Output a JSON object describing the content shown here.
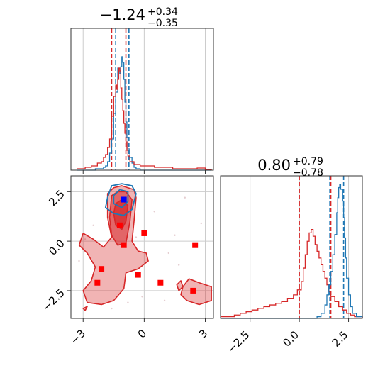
{
  "chart_data": {
    "type": "corner",
    "colors": {
      "blue": "#1f77b4",
      "red": "#d62728"
    },
    "panels": [
      {
        "id": "param1-hist",
        "type": "histogram",
        "title": {
          "value": "−1.24",
          "plus": "+0.34",
          "minus": "−0.35"
        },
        "xlim": [
          -3.6,
          3.4
        ],
        "grid": true,
        "quantiles_red": [
          -1.6,
          -0.9
        ],
        "quantiles_blue": [
          -1.4,
          -0.75
        ],
        "blue_bins": [
          [
            -3.3,
            0
          ],
          [
            -2.4,
            0.01
          ],
          [
            -2.0,
            0.02
          ],
          [
            -1.9,
            0.03
          ],
          [
            -1.8,
            0.06
          ],
          [
            -1.7,
            0.12
          ],
          [
            -1.6,
            0.22
          ],
          [
            -1.5,
            0.4
          ],
          [
            -1.4,
            0.55
          ],
          [
            -1.3,
            0.72
          ],
          [
            -1.2,
            0.68
          ],
          [
            -1.15,
            0.73
          ],
          [
            -1.1,
            0.8
          ],
          [
            -1.05,
            0.76
          ],
          [
            -1.0,
            0.64
          ],
          [
            -0.95,
            0.48
          ],
          [
            -0.9,
            0.34
          ],
          [
            -0.85,
            0.23
          ],
          [
            -0.8,
            0.15
          ],
          [
            -0.7,
            0.09
          ],
          [
            -0.6,
            0.05
          ],
          [
            -0.5,
            0.02
          ],
          [
            -0.4,
            0.01
          ],
          [
            -0.2,
            0
          ],
          [
            3.3,
            0
          ]
        ],
        "red_bins": [
          [
            -3.3,
            0.01
          ],
          [
            -2.9,
            0.02
          ],
          [
            -2.6,
            0.03
          ],
          [
            -2.3,
            0.05
          ],
          [
            -2.1,
            0.06
          ],
          [
            -2.0,
            0.09
          ],
          [
            -1.9,
            0.11
          ],
          [
            -1.8,
            0.16
          ],
          [
            -1.7,
            0.22
          ],
          [
            -1.6,
            0.38
          ],
          [
            -1.5,
            0.52
          ],
          [
            -1.4,
            0.6
          ],
          [
            -1.35,
            0.57
          ],
          [
            -1.3,
            0.64
          ],
          [
            -1.25,
            0.72
          ],
          [
            -1.2,
            0.7
          ],
          [
            -1.15,
            0.58
          ],
          [
            -1.1,
            0.5
          ],
          [
            -1.05,
            0.42
          ],
          [
            -1.0,
            0.33
          ],
          [
            -0.95,
            0.26
          ],
          [
            -0.9,
            0.2
          ],
          [
            -0.85,
            0.14
          ],
          [
            -0.8,
            0.1
          ],
          [
            -0.7,
            0.06
          ],
          [
            -0.5,
            0.04
          ],
          [
            -0.2,
            0.03
          ],
          [
            0.5,
            0.02
          ],
          [
            1.4,
            0.01
          ],
          [
            2.6,
            0.015
          ],
          [
            3.0,
            0.005
          ],
          [
            3.3,
            0
          ]
        ]
      },
      {
        "id": "param2-hist",
        "type": "histogram",
        "title": {
          "value": "0.80",
          "plus": "+0.79",
          "minus": "−0.78"
        },
        "xlim": [
          -4.0,
          3.2
        ],
        "xticks": [
          "−2.5",
          "0.0",
          "2.5"
        ],
        "xtick_values": [
          -2.5,
          0.0,
          2.5
        ],
        "grid": true,
        "quantiles_red": [
          0.0,
          1.6
        ],
        "quantiles_blue": [
          1.55,
          2.25
        ],
        "blue_bins": [
          [
            -4.0,
            0
          ],
          [
            0.9,
            0.01
          ],
          [
            1.1,
            0.03
          ],
          [
            1.3,
            0.08
          ],
          [
            1.4,
            0.14
          ],
          [
            1.5,
            0.2
          ],
          [
            1.6,
            0.28
          ],
          [
            1.7,
            0.38
          ],
          [
            1.8,
            0.5
          ],
          [
            1.9,
            0.63
          ],
          [
            1.95,
            0.72
          ],
          [
            2.0,
            0.78
          ],
          [
            2.05,
            0.8
          ],
          [
            2.1,
            0.77
          ],
          [
            2.2,
            0.7
          ],
          [
            2.25,
            0.6
          ],
          [
            2.3,
            0.48
          ],
          [
            2.35,
            0.36
          ],
          [
            2.4,
            0.24
          ],
          [
            2.5,
            0.14
          ],
          [
            2.6,
            0.07
          ],
          [
            2.7,
            0.03
          ],
          [
            2.9,
            0.01
          ],
          [
            3.2,
            0
          ]
        ],
        "red_bins": [
          [
            -4.0,
            0.01
          ],
          [
            -3.3,
            0.02
          ],
          [
            -3.0,
            0.03
          ],
          [
            -2.7,
            0.04
          ],
          [
            -2.4,
            0.05
          ],
          [
            -2.1,
            0.06
          ],
          [
            -1.8,
            0.07
          ],
          [
            -1.5,
            0.08
          ],
          [
            -1.2,
            0.09
          ],
          [
            -0.9,
            0.1
          ],
          [
            -0.6,
            0.12
          ],
          [
            -0.3,
            0.14
          ],
          [
            -0.1,
            0.17
          ],
          [
            0.1,
            0.22
          ],
          [
            0.2,
            0.3
          ],
          [
            0.3,
            0.38
          ],
          [
            0.4,
            0.46
          ],
          [
            0.5,
            0.51
          ],
          [
            0.6,
            0.53
          ],
          [
            0.7,
            0.49
          ],
          [
            0.8,
            0.44
          ],
          [
            0.9,
            0.4
          ],
          [
            1.0,
            0.36
          ],
          [
            1.1,
            0.32
          ],
          [
            1.2,
            0.28
          ],
          [
            1.3,
            0.24
          ],
          [
            1.4,
            0.2
          ],
          [
            1.5,
            0.16
          ],
          [
            1.6,
            0.13
          ],
          [
            1.8,
            0.1
          ],
          [
            2.0,
            0.07
          ],
          [
            2.2,
            0.05
          ],
          [
            2.4,
            0.03
          ],
          [
            2.6,
            0.02
          ],
          [
            2.8,
            0.01
          ],
          [
            3.2,
            0
          ]
        ]
      },
      {
        "id": "joint-2d",
        "type": "contour-2d",
        "xlim": [
          -3.6,
          3.4
        ],
        "ylim": [
          -3.9,
          3.3
        ],
        "xticks": [
          "−3",
          "0",
          "3"
        ],
        "xtick_values": [
          -3,
          0,
          3
        ],
        "yticks": [
          "2.5",
          "0.0",
          "−2.5"
        ],
        "ytick_values": [
          2.5,
          0.0,
          -2.5
        ],
        "grid": true,
        "red_contours": [
          {
            "level": "outer",
            "points": [
              [
                -1.8,
                2.4
              ],
              [
                -1.5,
                2.7
              ],
              [
                -1.1,
                2.8
              ],
              [
                -0.5,
                2.6
              ],
              [
                -0.4,
                2.2
              ],
              [
                -0.5,
                1.0
              ],
              [
                -0.6,
                0.0
              ],
              [
                -0.3,
                -0.5
              ],
              [
                0.1,
                -0.6
              ],
              [
                0.2,
                -1.0
              ],
              [
                -0.3,
                -1.4
              ],
              [
                -0.9,
                -1.6
              ],
              [
                -1.0,
                -2.4
              ],
              [
                -1.5,
                -3.0
              ],
              [
                -2.1,
                -3.2
              ],
              [
                -2.8,
                -3.1
              ],
              [
                -3.0,
                -2.5
              ],
              [
                -2.6,
                -2.0
              ],
              [
                -2.4,
                -1.3
              ],
              [
                -2.8,
                -0.6
              ],
              [
                -3.2,
                -0.2
              ],
              [
                -3.0,
                0.4
              ],
              [
                -2.5,
                0.1
              ],
              [
                -2.0,
                -0.3
              ],
              [
                -1.6,
                0.2
              ],
              [
                -1.8,
                1.2
              ]
            ]
          },
          {
            "level": "inner",
            "points": [
              [
                -1.6,
                2.3
              ],
              [
                -1.3,
                2.5
              ],
              [
                -0.9,
                2.5
              ],
              [
                -0.6,
                2.1
              ],
              [
                -0.7,
                1.0
              ],
              [
                -0.9,
                -0.1
              ],
              [
                -1.3,
                -0.2
              ],
              [
                -1.6,
                0.3
              ],
              [
                -1.7,
                1.2
              ]
            ]
          },
          {
            "level": "core",
            "points": [
              [
                -1.4,
                1.9
              ],
              [
                -1.1,
                2.1
              ],
              [
                -0.8,
                1.8
              ],
              [
                -0.9,
                1.0
              ],
              [
                -1.1,
                0.6
              ],
              [
                -1.4,
                0.8
              ],
              [
                -1.5,
                1.4
              ]
            ]
          },
          {
            "level": "island",
            "points": [
              [
                1.9,
                -2.3
              ],
              [
                2.2,
                -1.9
              ],
              [
                2.7,
                -2.1
              ],
              [
                3.3,
                -2.3
              ],
              [
                3.3,
                -3.0
              ],
              [
                2.7,
                -3.2
              ],
              [
                2.1,
                -3.0
              ],
              [
                1.8,
                -2.7
              ]
            ]
          },
          {
            "level": "island",
            "points": [
              [
                1.6,
                -2.2
              ],
              [
                1.8,
                -2.0
              ],
              [
                1.9,
                -2.3
              ],
              [
                1.7,
                -2.5
              ]
            ]
          },
          {
            "level": "island",
            "points": [
              [
                -3.0,
                -3.4
              ],
              [
                -2.8,
                -3.3
              ],
              [
                -2.9,
                -3.5
              ]
            ]
          }
        ],
        "blue_contours": [
          {
            "level": "outer",
            "points": [
              [
                -1.8,
                2.2
              ],
              [
                -1.6,
                2.8
              ],
              [
                -1.1,
                2.9
              ],
              [
                -0.6,
                2.8
              ],
              [
                -0.4,
                2.4
              ],
              [
                -0.6,
                1.6
              ],
              [
                -1.0,
                1.3
              ],
              [
                -1.5,
                1.4
              ],
              [
                -1.9,
                1.7
              ]
            ]
          },
          {
            "level": "inner",
            "points": [
              [
                -1.5,
                2.3
              ],
              [
                -1.2,
                2.6
              ],
              [
                -0.8,
                2.5
              ],
              [
                -0.8,
                2.0
              ],
              [
                -1.1,
                1.7
              ],
              [
                -1.5,
                1.9
              ]
            ]
          }
        ],
        "red_points": [
          [
            -1.2,
            0.8
          ],
          [
            0.0,
            0.4
          ],
          [
            -1.0,
            -0.2
          ],
          [
            2.5,
            -0.2
          ],
          [
            -2.1,
            -1.4
          ],
          [
            -0.3,
            -1.7
          ],
          [
            0.8,
            -2.1
          ],
          [
            -2.3,
            -2.1
          ],
          [
            2.4,
            -2.5
          ]
        ],
        "blue_points": [
          [
            -1.0,
            2.1
          ]
        ],
        "scatter_points": [
          [
            -2.9,
            0.1
          ],
          [
            -2.5,
            0.8
          ],
          [
            -0.4,
            0.2
          ],
          [
            1.2,
            -0.6
          ],
          [
            1.7,
            -1.2
          ],
          [
            2.8,
            0.9
          ],
          [
            -0.1,
            -2.8
          ],
          [
            1.0,
            -3.0
          ],
          [
            -1.6,
            -3.4
          ],
          [
            0.5,
            1.5
          ],
          [
            2.0,
            2.2
          ],
          [
            -3.2,
            -1.0
          ],
          [
            1.5,
            0.3
          ],
          [
            -0.8,
            -3.1
          ]
        ]
      }
    ]
  }
}
